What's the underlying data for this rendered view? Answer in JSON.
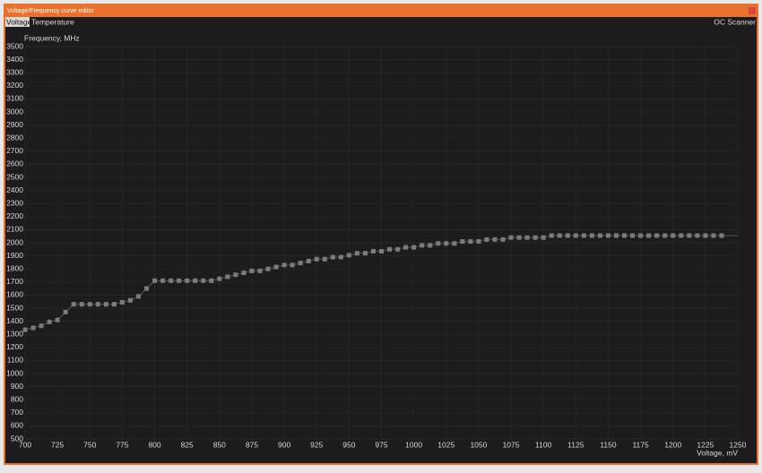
{
  "window": {
    "title": "Voltage/Frequency curve editor",
    "tabs": [
      "Voltage",
      "Temperature"
    ],
    "right_button": "OC Scanner"
  },
  "chart_data": {
    "type": "line",
    "x_label": "Voltage, mV",
    "y_label": "Frequency, MHz",
    "x": [
      700,
      706.25,
      712.5,
      718.75,
      725,
      731.25,
      737.5,
      743.75,
      750,
      756.25,
      762.5,
      768.75,
      775,
      781.25,
      787.5,
      793.75,
      800,
      806.25,
      812.5,
      818.75,
      825,
      831.25,
      837.5,
      843.75,
      850,
      856.25,
      862.5,
      868.75,
      875,
      881.25,
      887.5,
      893.75,
      900,
      906.25,
      912.5,
      918.75,
      925,
      931.25,
      937.5,
      943.75,
      950,
      956.25,
      962.5,
      968.75,
      975,
      981.25,
      987.5,
      993.75,
      1000,
      1006.25,
      1012.5,
      1018.75,
      1025,
      1031.25,
      1037.5,
      1043.75,
      1050,
      1056.25,
      1062.5,
      1068.75,
      1075,
      1081.25,
      1087.5,
      1093.75,
      1100,
      1106.25,
      1112.5,
      1118.75,
      1125,
      1131.25,
      1137.5,
      1143.75,
      1150,
      1156.25,
      1162.5,
      1168.75,
      1175,
      1181.25,
      1187.5,
      1193.75,
      1200,
      1206.25,
      1212.5,
      1218.75,
      1225,
      1231.25,
      1237.5
    ],
    "series": [
      {
        "color": "#7c7c7c",
        "values": [
          1335,
          1350,
          1365,
          1395,
          1410,
          1470,
          1530,
          1530,
          1530,
          1530,
          1530,
          1530,
          1545,
          1560,
          1590,
          1650,
          1710,
          1710,
          1710,
          1710,
          1710,
          1710,
          1710,
          1710,
          1725,
          1740,
          1755,
          1770,
          1785,
          1785,
          1800,
          1815,
          1830,
          1830,
          1845,
          1860,
          1875,
          1875,
          1890,
          1890,
          1905,
          1920,
          1920,
          1935,
          1935,
          1950,
          1950,
          1965,
          1965,
          1980,
          1980,
          1995,
          1995,
          1995,
          2010,
          2010,
          2010,
          2025,
          2025,
          2025,
          2040,
          2040,
          2040,
          2040,
          2040,
          2055,
          2055,
          2055,
          2055,
          2055,
          2055,
          2055,
          2055,
          2055,
          2055,
          2055,
          2055,
          2055,
          2055,
          2055,
          2055,
          2055,
          2055,
          2055,
          2055,
          2055,
          2055
        ]
      }
    ],
    "xlim": [
      700,
      1250
    ],
    "ylim": [
      500,
      3500
    ],
    "xticks": [
      700,
      725,
      750,
      775,
      800,
      825,
      850,
      875,
      900,
      925,
      950,
      975,
      1000,
      1025,
      1050,
      1075,
      1100,
      1125,
      1150,
      1175,
      1200,
      1225,
      1250
    ],
    "yticks": [
      500,
      600,
      700,
      800,
      900,
      1000,
      1100,
      1200,
      1300,
      1400,
      1500,
      1600,
      1700,
      1800,
      1900,
      2000,
      2100,
      2200,
      2300,
      2400,
      2500,
      2600,
      2700,
      2800,
      2900,
      3000,
      3100,
      3200,
      3300,
      3400,
      3500
    ],
    "grid": true
  }
}
